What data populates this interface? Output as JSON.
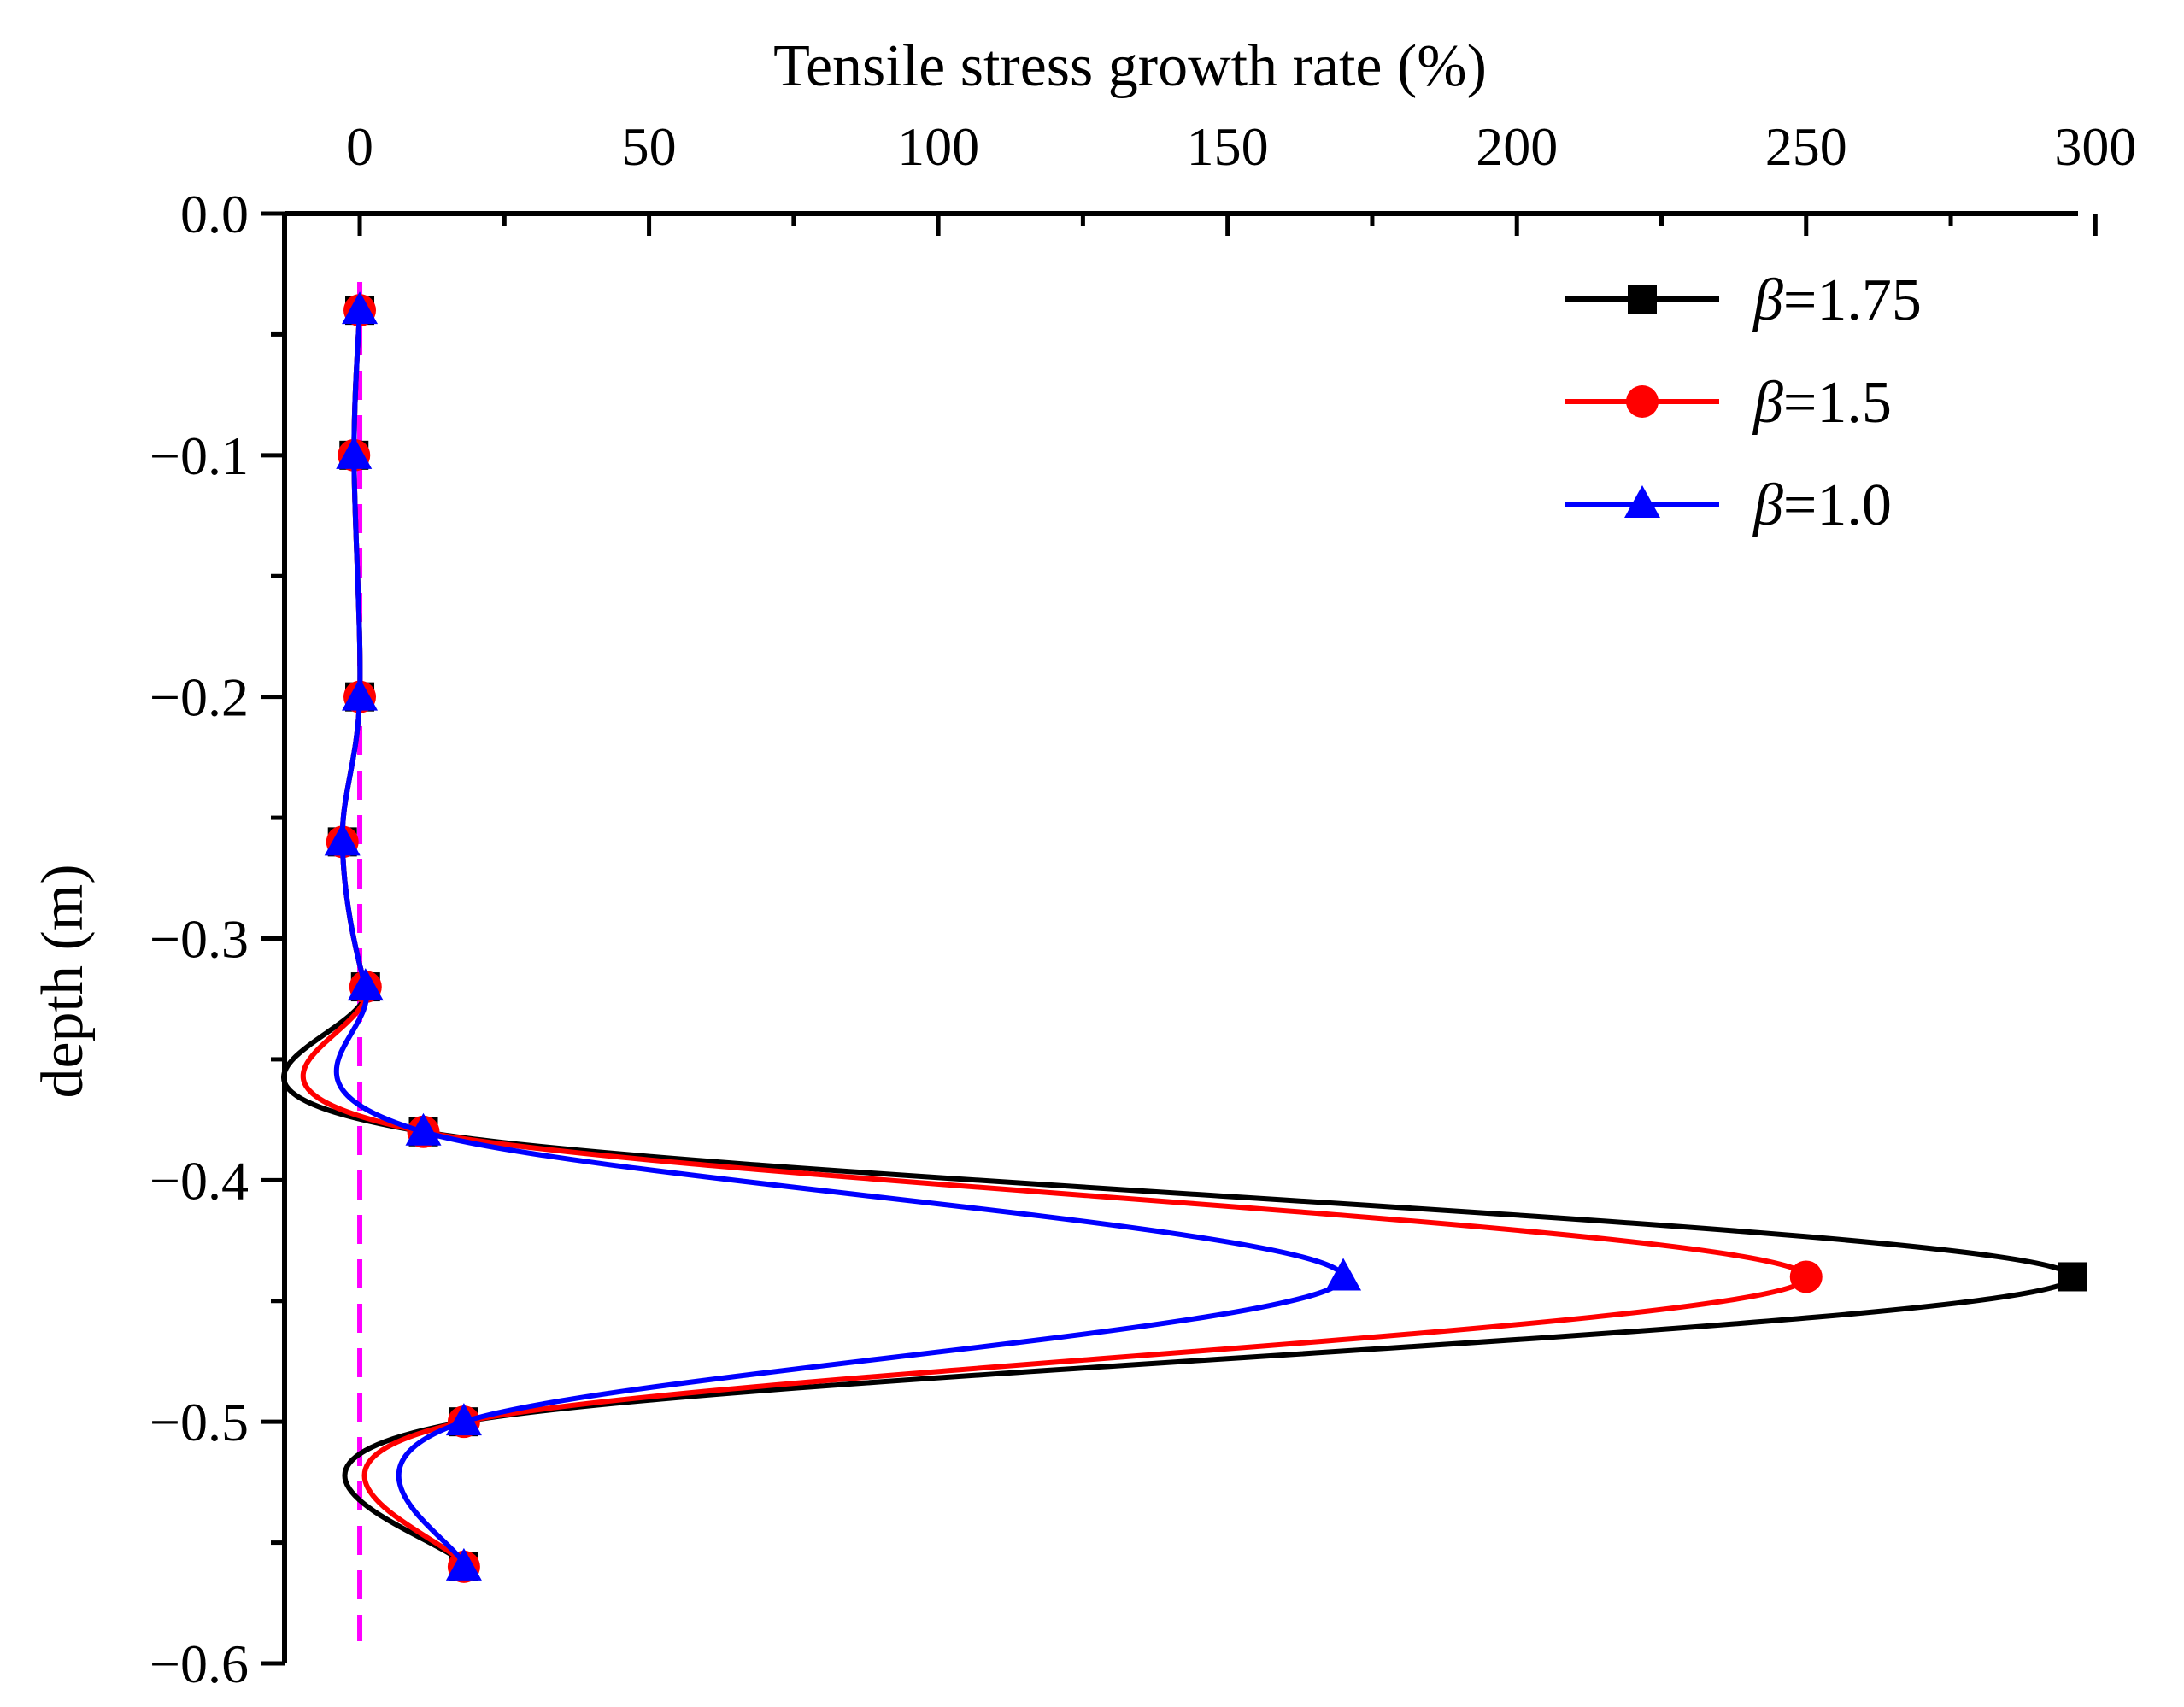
{
  "chart_data": {
    "type": "line",
    "title": "",
    "xlabel": "Tensile stress growth rate (%)",
    "ylabel": "depth (m)",
    "x_axis_position": "top",
    "xlim": [
      -13,
      297
    ],
    "ylim": [
      -0.6,
      0.0
    ],
    "x_ticks": [
      0,
      50,
      100,
      150,
      200,
      250,
      300
    ],
    "x_tick_labels": [
      "0",
      "50",
      "100",
      "150",
      "200",
      "250",
      "300"
    ],
    "y_ticks": [
      0.0,
      -0.1,
      -0.2,
      -0.3,
      -0.4,
      -0.5,
      -0.6
    ],
    "y_tick_labels": [
      "0.0",
      "−0.1",
      "−0.2",
      "−0.3",
      "−0.4",
      "−0.5",
      "−0.6"
    ],
    "grid": false,
    "legend_position": "top-right",
    "reference_line": {
      "x": 0,
      "color": "#ff00ff",
      "style": "dashed"
    },
    "y": [
      -0.04,
      -0.1,
      -0.2,
      -0.26,
      -0.32,
      -0.38,
      -0.44,
      -0.5,
      -0.56
    ],
    "series": [
      {
        "name": "β=1.75",
        "symbol": "β",
        "value_text": "=1.75",
        "color": "#000000",
        "marker": "square",
        "x": [
          0,
          -1,
          0,
          -3,
          1,
          11,
          296,
          18,
          18
        ]
      },
      {
        "name": "β=1.5",
        "symbol": "β",
        "value_text": "=1.5",
        "color": "#ff0000",
        "marker": "circle",
        "x": [
          0,
          -1,
          0,
          -3,
          1,
          11,
          250,
          18,
          18
        ]
      },
      {
        "name": "β=1.0",
        "symbol": "β",
        "value_text": "=1.0",
        "color": "#0000ff",
        "marker": "triangle",
        "x": [
          0,
          -1,
          0,
          -3,
          1,
          11,
          170,
          18,
          18
        ]
      }
    ]
  }
}
